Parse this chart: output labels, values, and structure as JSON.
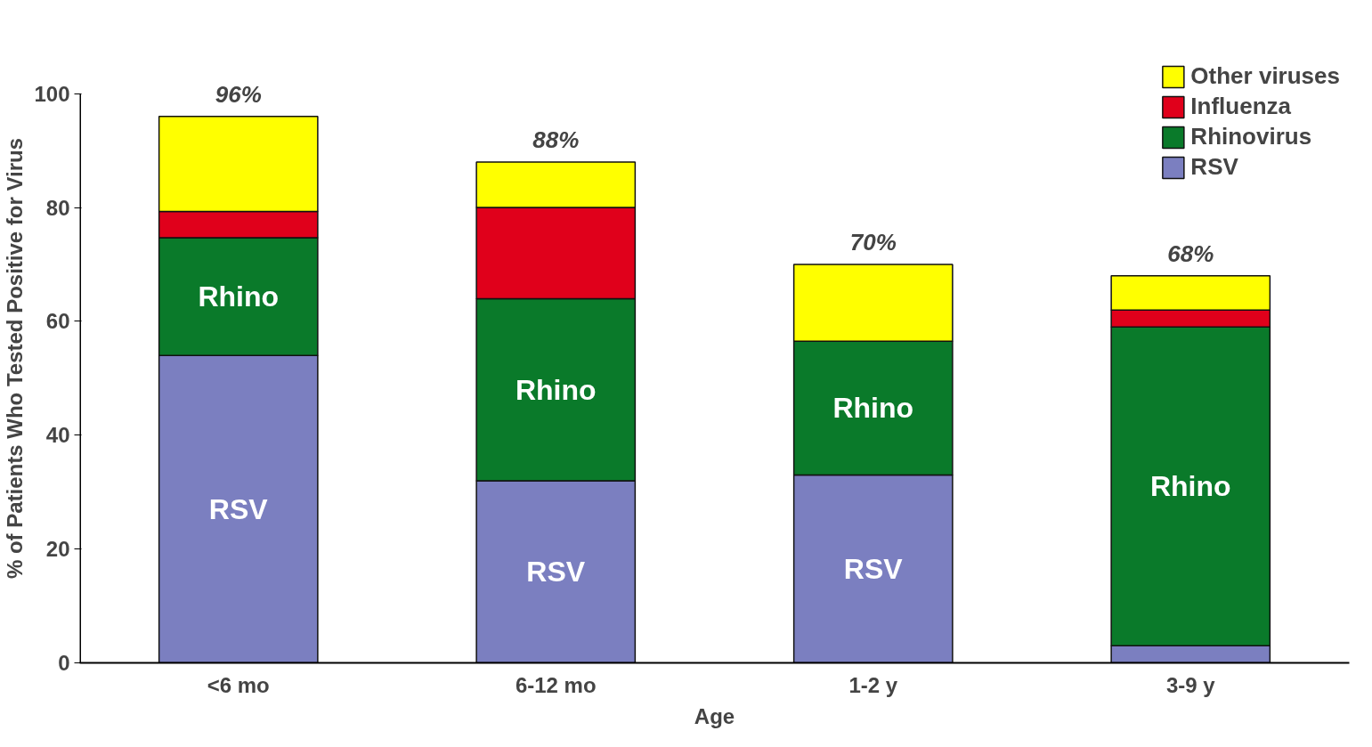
{
  "chart_data": {
    "type": "bar",
    "stacked": true,
    "xlabel": "Age",
    "ylabel": "% of Patients Who Tested Positive for Virus",
    "categories": [
      "<6 mo",
      "6-12 mo",
      "1-2 y",
      "3-9 y"
    ],
    "series": [
      {
        "name": "RSV",
        "color": "#7b7fc0",
        "values": [
          54,
          32,
          33,
          3
        ]
      },
      {
        "name": "Rhinovirus",
        "color": "#0a7a2a",
        "values": [
          20.7,
          32,
          23.5,
          56
        ]
      },
      {
        "name": "Influenza",
        "color": "#e0001b",
        "values": [
          4.6,
          16,
          0,
          3
        ]
      },
      {
        "name": "Other viruses",
        "color": "#ffff00",
        "values": [
          16.7,
          8,
          13.5,
          6
        ]
      }
    ],
    "totals": [
      "96%",
      "88%",
      "70%",
      "68%"
    ],
    "annotations": [
      "Rhino",
      "RSV",
      "Rhino",
      "RSV",
      "Rhino",
      "RSV",
      "Rhino"
    ],
    "ylim": [
      0,
      100
    ],
    "yticks": [
      0,
      20,
      40,
      60,
      80,
      100
    ],
    "grid": false,
    "legend": "top right"
  }
}
